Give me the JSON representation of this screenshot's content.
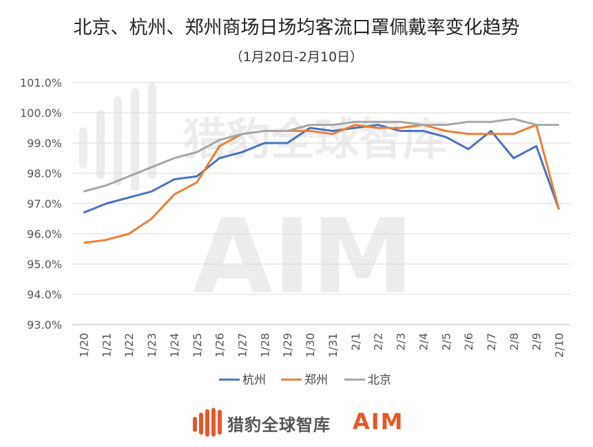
{
  "title": "北京、杭州、郑州商场日场均客流口罩佩戴率变化趋势",
  "subtitle": "（1月20日-2月10日）",
  "watermark": {
    "brand": "猎豹全球智库",
    "logo": "AIM"
  },
  "footer": {
    "brand": "猎豹全球智库",
    "logo": "AIM"
  },
  "colors": {
    "hangzhou": "#4472c4",
    "zhengzhou": "#ed7d31",
    "beijing": "#a5a5a5",
    "grid": "#d9d9d9",
    "accent": "#e4592a"
  },
  "chart_data": {
    "type": "line",
    "categories": [
      "1/20",
      "1/21",
      "1/22",
      "1/23",
      "1/24",
      "1/25",
      "1/26",
      "1/27",
      "1/28",
      "1/29",
      "1/30",
      "1/31",
      "2/1",
      "2/2",
      "2/3",
      "2/4",
      "2/5",
      "2/6",
      "2/7",
      "2/8",
      "2/9",
      "2/10"
    ],
    "series": [
      {
        "name": "杭州",
        "color": "#4472c4",
        "values": [
          96.7,
          97.0,
          97.2,
          97.4,
          97.8,
          97.9,
          98.5,
          98.7,
          99.0,
          99.0,
          99.5,
          99.4,
          99.5,
          99.6,
          99.4,
          99.4,
          99.2,
          98.8,
          99.4,
          98.5,
          98.9,
          96.8
        ]
      },
      {
        "name": "郑州",
        "color": "#ed7d31",
        "values": [
          95.7,
          95.8,
          96.0,
          96.5,
          97.3,
          97.7,
          98.9,
          99.3,
          99.4,
          99.4,
          99.4,
          99.3,
          99.6,
          99.5,
          99.5,
          99.6,
          99.4,
          99.3,
          99.3,
          99.3,
          99.6,
          96.8
        ]
      },
      {
        "name": "北京",
        "color": "#a5a5a5",
        "values": [
          97.4,
          97.6,
          97.9,
          98.2,
          98.5,
          98.7,
          99.1,
          99.3,
          99.4,
          99.4,
          99.6,
          99.6,
          99.7,
          99.7,
          99.7,
          99.6,
          99.6,
          99.7,
          99.7,
          99.8,
          99.6,
          99.6
        ]
      }
    ],
    "y_ticks": [
      "93.0%",
      "94.0%",
      "95.0%",
      "96.0%",
      "97.0%",
      "98.0%",
      "99.0%",
      "100.0%",
      "101.0%"
    ],
    "ylim": [
      93,
      101
    ],
    "grid": true,
    "legend": "bottom"
  }
}
